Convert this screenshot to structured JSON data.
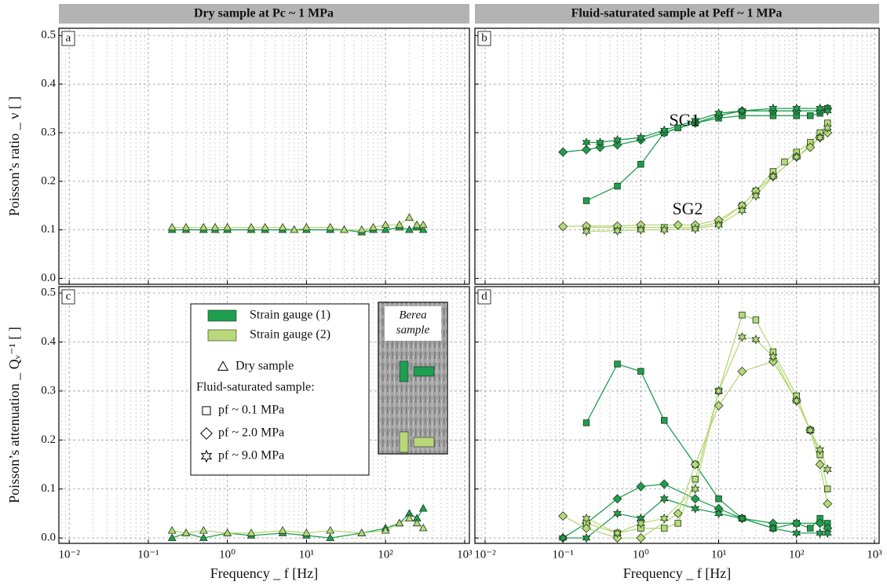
{
  "headers": [
    "Dry sample at Pc ~ 1 MPa",
    "Fluid-saturated sample at Peff ~ 1 MPa"
  ],
  "chart_data": [
    {
      "type": "line",
      "panel_label": "a",
      "ylabel": "Poisson’s ratio _ ν [ ]",
      "xscale": "log",
      "xlim": [
        0.0074,
        1150
      ],
      "ylim": [
        -0.012,
        0.515
      ],
      "grid": true,
      "show_xtick_labels": false,
      "show_ytick_labels": true,
      "xticks": [
        {
          "value": 0.01,
          "label": "10⁻²"
        },
        {
          "value": 0.1,
          "label": "10⁻¹"
        },
        {
          "value": 1,
          "label": "10⁰"
        },
        {
          "value": 10,
          "label": "10¹"
        },
        {
          "value": 100,
          "label": "10²"
        },
        {
          "value": 1000,
          "label": "10³"
        }
      ],
      "yticks": [
        {
          "value": 0,
          "label": "0.0"
        },
        0.1,
        0.2,
        0.3,
        0.4,
        0.5
      ],
      "series": [
        {
          "marker": "triangle",
          "color": "#1f9e4f",
          "x": [
            0.2,
            0.3,
            0.5,
            0.7,
            1,
            2,
            3,
            5,
            7,
            10,
            20,
            30,
            50,
            70,
            100,
            150,
            200,
            250,
            300
          ],
          "values": [
            0.1,
            0.1,
            0.1,
            0.1,
            0.1,
            0.1,
            0.1,
            0.1,
            0.1,
            0.1,
            0.1,
            0.1,
            0.095,
            0.1,
            0.1,
            0.105,
            0.1,
            0.105,
            0.1
          ]
        },
        {
          "marker": "triangle",
          "color": "#b8d87a",
          "x": [
            0.2,
            0.3,
            0.5,
            0.7,
            1,
            2,
            3,
            5,
            7,
            10,
            20,
            30,
            50,
            70,
            100,
            150,
            200,
            250,
            300
          ],
          "values": [
            0.105,
            0.105,
            0.105,
            0.105,
            0.105,
            0.105,
            0.105,
            0.105,
            0.1,
            0.105,
            0.105,
            0.1,
            0.1,
            0.105,
            0.11,
            0.11,
            0.125,
            0.11,
            0.11
          ]
        }
      ]
    },
    {
      "type": "line",
      "panel_label": "b",
      "xscale": "log",
      "xlim": [
        0.0074,
        1150
      ],
      "ylim": [
        -0.012,
        0.515
      ],
      "grid": true,
      "show_xtick_labels": false,
      "show_ytick_labels": false,
      "xticks": [
        {
          "value": 0.01,
          "label": "10⁻²"
        },
        {
          "value": 0.1,
          "label": "10⁻¹"
        },
        {
          "value": 1,
          "label": "10⁰"
        },
        {
          "value": 10,
          "label": "10¹"
        },
        {
          "value": 100,
          "label": "10²"
        },
        {
          "value": 1000,
          "label": "10³"
        }
      ],
      "yticks": [
        {
          "value": 0,
          "label": "0.0"
        },
        0.1,
        0.2,
        0.3,
        0.4,
        0.5
      ],
      "annotations": [
        "SG1",
        "SG2"
      ],
      "series": [
        {
          "marker": "square",
          "color": "#1f9e4f",
          "x": [
            0.2,
            0.5,
            1,
            2,
            3,
            5,
            10,
            20,
            50,
            100,
            150,
            200,
            250
          ],
          "values": [
            0.16,
            0.19,
            0.235,
            0.3,
            0.31,
            0.32,
            0.33,
            0.335,
            0.335,
            0.335,
            0.335,
            0.34,
            0.35
          ]
        },
        {
          "marker": "diamond",
          "color": "#1f9e4f",
          "x": [
            0.1,
            0.2,
            0.3,
            0.5,
            1,
            2,
            5,
            10,
            20,
            50,
            100,
            200,
            250
          ],
          "values": [
            0.26,
            0.265,
            0.27,
            0.275,
            0.285,
            0.3,
            0.32,
            0.335,
            0.345,
            0.345,
            0.345,
            0.345,
            0.35
          ]
        },
        {
          "marker": "star",
          "color": "#1f9e4f",
          "x": [
            0.2,
            0.3,
            0.5,
            1,
            2,
            5,
            10,
            20,
            50,
            100,
            200,
            250
          ],
          "values": [
            0.28,
            0.28,
            0.285,
            0.29,
            0.305,
            0.325,
            0.34,
            0.345,
            0.35,
            0.35,
            0.35,
            0.345
          ]
        },
        {
          "marker": "square",
          "color": "#b8d87a",
          "x": [
            0.2,
            0.5,
            1,
            2,
            5,
            10,
            20,
            30,
            50,
            70,
            100,
            150,
            200,
            250
          ],
          "values": [
            0.105,
            0.105,
            0.105,
            0.105,
            0.105,
            0.115,
            0.15,
            0.18,
            0.22,
            0.24,
            0.26,
            0.28,
            0.3,
            0.32
          ]
        },
        {
          "marker": "diamond",
          "color": "#b8d87a",
          "x": [
            0.1,
            0.2,
            0.5,
            1,
            3,
            5,
            10,
            20,
            30,
            50,
            100,
            150,
            200,
            250
          ],
          "values": [
            0.107,
            0.108,
            0.108,
            0.11,
            0.11,
            0.11,
            0.12,
            0.15,
            0.18,
            0.21,
            0.25,
            0.27,
            0.29,
            0.3
          ]
        },
        {
          "marker": "star",
          "color": "#b8d87a",
          "x": [
            0.2,
            0.5,
            1,
            2,
            5,
            10,
            20,
            30,
            50,
            100,
            200,
            250
          ],
          "values": [
            0.097,
            0.098,
            0.1,
            0.1,
            0.102,
            0.11,
            0.14,
            0.17,
            0.21,
            0.25,
            0.29,
            0.31
          ]
        }
      ]
    },
    {
      "type": "line",
      "panel_label": "c",
      "ylabel": "Poisson’s attenuation _ Qᵥ⁻¹ [ ]",
      "xlabel": "Frequency _ f [Hz]",
      "xscale": "log",
      "xlim": [
        0.0074,
        1150
      ],
      "ylim": [
        -0.011,
        0.513
      ],
      "grid": true,
      "show_xtick_labels": true,
      "show_ytick_labels": true,
      "xticks": [
        {
          "value": 0.01,
          "label": "10⁻²"
        },
        {
          "value": 0.1,
          "label": "10⁻¹"
        },
        {
          "value": 1,
          "label": "10⁰"
        },
        {
          "value": 10,
          "label": "10¹"
        },
        {
          "value": 100,
          "label": "10²"
        },
        {
          "value": 1000,
          "label": "10³"
        }
      ],
      "yticks": [
        {
          "value": 0,
          "label": "0.0"
        },
        0.1,
        0.2,
        0.3,
        0.4,
        0.5
      ],
      "legend": {
        "gauges": [
          {
            "name": "Strain gauge (1)",
            "color": "#1f9e4f"
          },
          {
            "name": "Strain gauge (2)",
            "color": "#b8d87a"
          }
        ],
        "dry": {
          "marker": "triangle",
          "label": "Dry sample"
        },
        "heading": "Fluid-saturated sample:",
        "markers": [
          {
            "marker": "square",
            "label": "pf ~ 0.1 MPa"
          },
          {
            "marker": "diamond",
            "label": "pf ~ 2.0 MPa"
          },
          {
            "marker": "star",
            "label": "pf ~ 9.0 MPa"
          }
        ]
      },
      "inset": [
        "Berea",
        "sample"
      ],
      "series": [
        {
          "marker": "triangle",
          "color": "#1f9e4f",
          "x": [
            0.2,
            0.3,
            0.5,
            1,
            2,
            5,
            10,
            20,
            50,
            100,
            150,
            200,
            250,
            300
          ],
          "values": [
            0.0,
            0.01,
            0.0,
            0.01,
            0.005,
            0.01,
            0.005,
            0.0,
            0.01,
            0.02,
            0.03,
            0.05,
            0.04,
            0.06
          ]
        },
        {
          "marker": "triangle",
          "color": "#b8d87a",
          "x": [
            0.2,
            0.3,
            0.5,
            1,
            2,
            5,
            10,
            20,
            50,
            100,
            150,
            200,
            250,
            300
          ],
          "values": [
            0.015,
            0.01,
            0.015,
            0.01,
            0.01,
            0.015,
            0.01,
            0.015,
            0.01,
            0.015,
            0.03,
            0.04,
            0.03,
            0.02
          ]
        }
      ]
    },
    {
      "type": "line",
      "panel_label": "d",
      "xlabel": "Frequency _ f [Hz]",
      "xscale": "log",
      "xlim": [
        0.0074,
        1150
      ],
      "ylim": [
        -0.011,
        0.513
      ],
      "grid": true,
      "show_xtick_labels": true,
      "show_ytick_labels": false,
      "xticks": [
        {
          "value": 0.01,
          "label": "10⁻²"
        },
        {
          "value": 0.1,
          "label": "10⁻¹"
        },
        {
          "value": 1,
          "label": "10⁰"
        },
        {
          "value": 10,
          "label": "10¹"
        },
        {
          "value": 100,
          "label": "10²"
        },
        {
          "value": 1000,
          "label": "10³"
        }
      ],
      "yticks": [
        {
          "value": 0,
          "label": "0.0"
        },
        0.1,
        0.2,
        0.3,
        0.4,
        0.5
      ],
      "series": [
        {
          "marker": "square",
          "color": "#1f9e4f",
          "x": [
            0.2,
            0.5,
            1,
            2,
            5,
            10,
            20,
            50,
            100,
            150,
            200,
            250
          ],
          "values": [
            0.235,
            0.355,
            0.34,
            0.24,
            0.15,
            0.08,
            0.04,
            0.02,
            0.03,
            0.02,
            0.04,
            0.03
          ]
        },
        {
          "marker": "diamond",
          "color": "#1f9e4f",
          "x": [
            0.1,
            0.2,
            0.5,
            1,
            2,
            5,
            10,
            20,
            50,
            100,
            200,
            250
          ],
          "values": [
            0.0,
            0.03,
            0.08,
            0.105,
            0.11,
            0.08,
            0.06,
            0.04,
            0.03,
            0.03,
            0.03,
            0.02
          ]
        },
        {
          "marker": "star",
          "color": "#1f9e4f",
          "x": [
            0.1,
            0.2,
            0.5,
            1,
            2,
            5,
            10,
            20,
            50,
            100,
            200,
            250
          ],
          "values": [
            0.0,
            0.0,
            0.05,
            0.04,
            0.08,
            0.06,
            0.05,
            0.04,
            0.02,
            0.01,
            0.01,
            0.01
          ]
        },
        {
          "marker": "square",
          "color": "#b8d87a",
          "x": [
            0.2,
            0.5,
            1,
            2,
            3,
            5,
            10,
            20,
            30,
            50,
            100,
            150,
            200,
            250
          ],
          "values": [
            0.03,
            0.01,
            0.02,
            0.02,
            0.03,
            0.12,
            0.3,
            0.455,
            0.445,
            0.38,
            0.29,
            0.22,
            0.17,
            0.1
          ]
        },
        {
          "marker": "diamond",
          "color": "#b8d87a",
          "x": [
            0.1,
            0.2,
            0.5,
            1,
            3,
            5,
            10,
            20,
            50,
            100,
            150,
            200,
            250
          ],
          "values": [
            0.045,
            0.02,
            0.0,
            0.0,
            0.05,
            0.15,
            0.27,
            0.34,
            0.36,
            0.28,
            0.22,
            0.15,
            0.07
          ]
        },
        {
          "marker": "star",
          "color": "#b8d87a",
          "x": [
            0.2,
            0.5,
            1,
            2,
            5,
            10,
            20,
            30,
            50,
            100,
            150,
            200,
            250
          ],
          "values": [
            0.04,
            0.01,
            0.03,
            0.04,
            0.1,
            0.3,
            0.41,
            0.405,
            0.37,
            0.28,
            0.22,
            0.18,
            0.14
          ]
        }
      ]
    }
  ]
}
